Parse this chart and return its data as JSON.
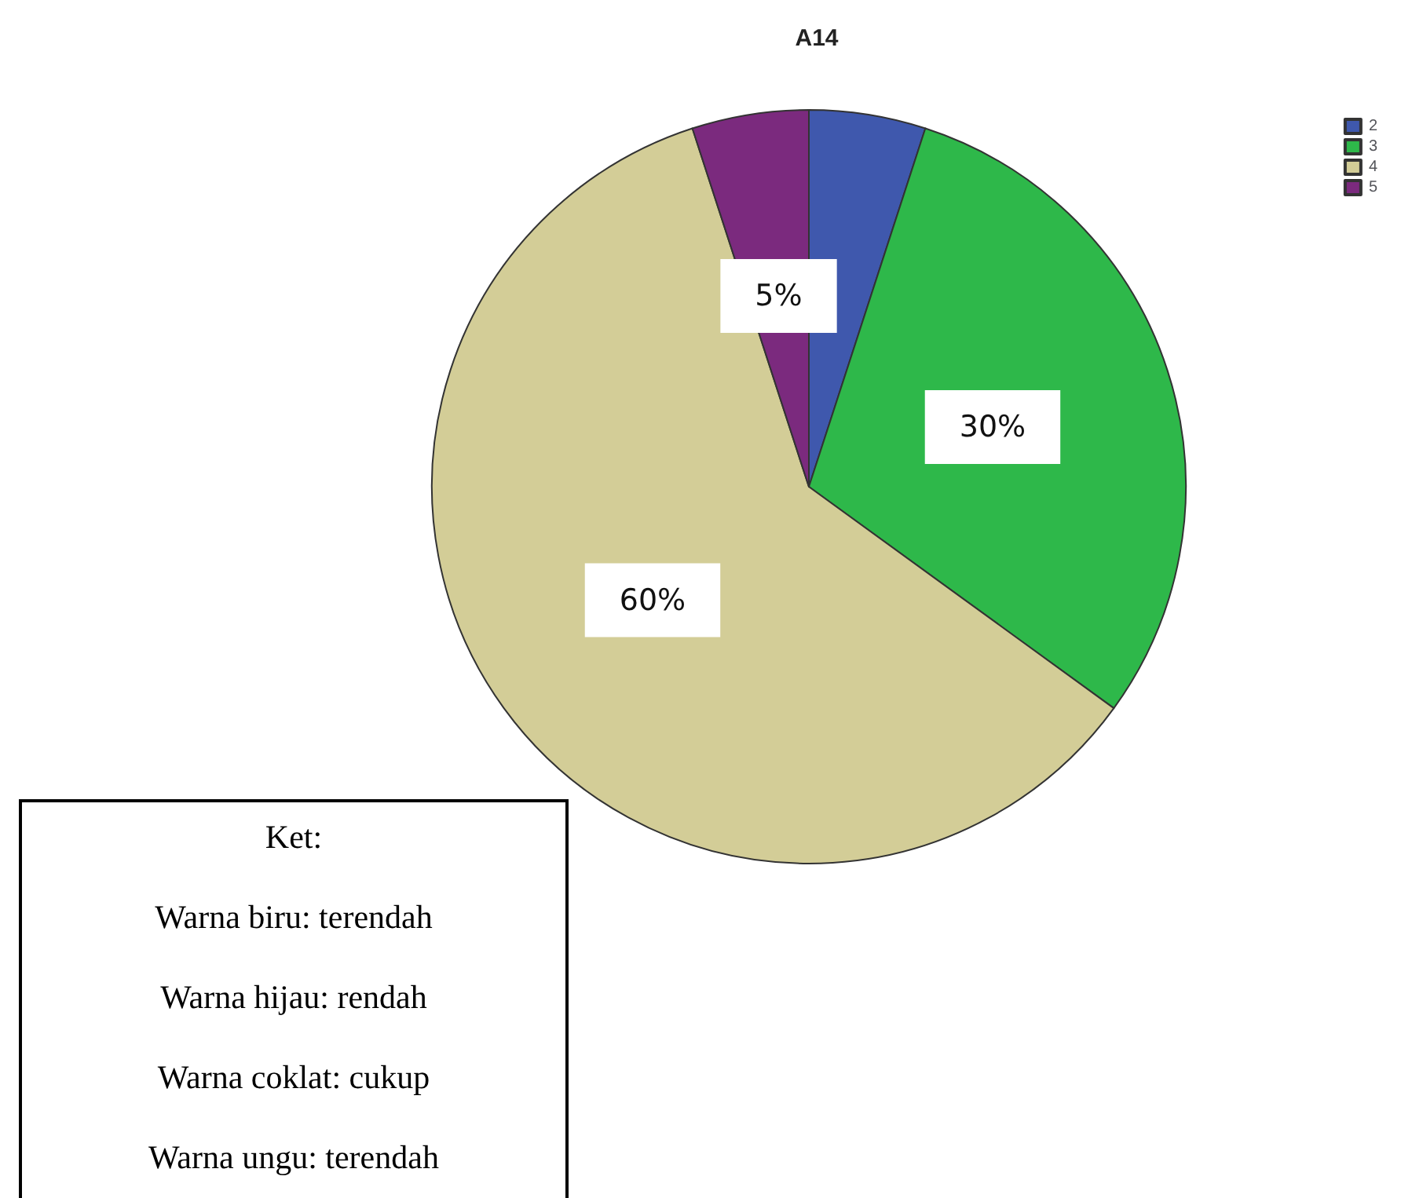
{
  "chart_data": {
    "type": "pie",
    "title": "A14",
    "categories": [
      "2",
      "3",
      "4",
      "5"
    ],
    "values": [
      5,
      30,
      60,
      5
    ],
    "colors": [
      "#3f58ad",
      "#2eb84a",
      "#d3cd97",
      "#7b2a7e"
    ],
    "value_labels": [
      null,
      "30%",
      "60%",
      "5%"
    ],
    "legend": "top right",
    "annotations": [
      "Ket:",
      "Warna biru: terendah",
      "Warna hijau: rendah",
      "Warna coklat: cukup",
      "Warna ungu: terendah"
    ]
  }
}
